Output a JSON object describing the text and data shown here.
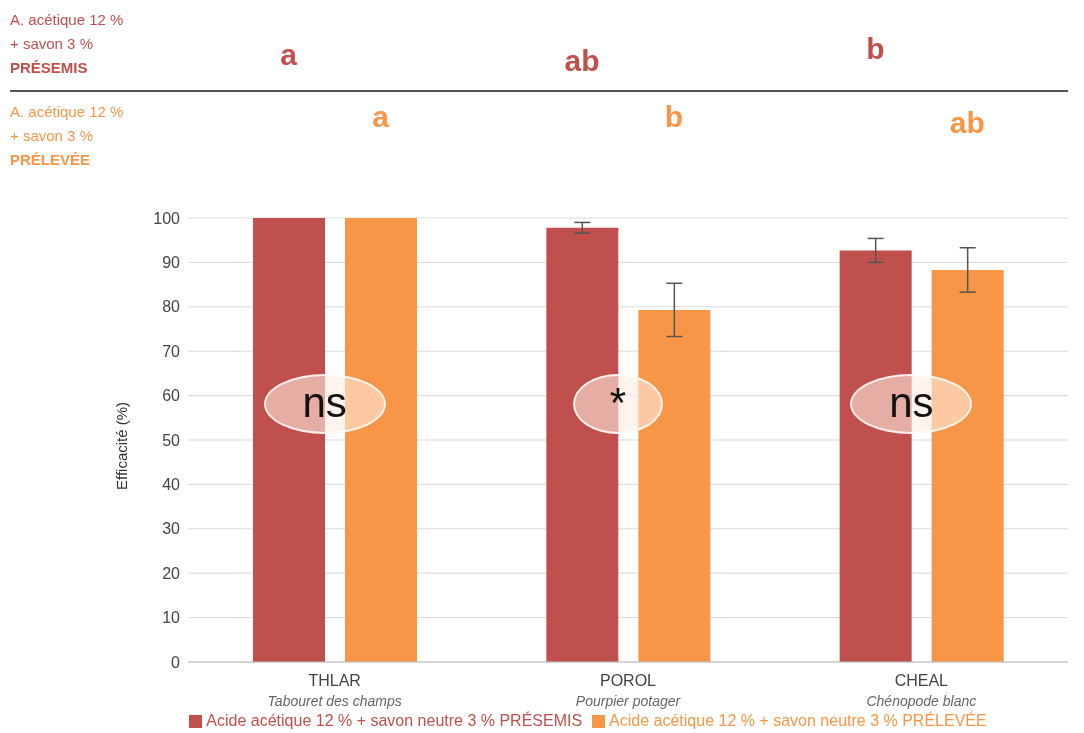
{
  "chart_data": {
    "type": "bar",
    "ylabel": "Efficacité (%)",
    "categories": [
      "THLAR\nTabouret des champs",
      "POROL\nPourpier potager",
      "CHEAL\nChénopode blanc"
    ],
    "series": [
      {
        "name": "Acide acétique 12 % + savon neutre 3 % PRÉSEMIS",
        "color": "#c0504d",
        "values": [
          100,
          97.8,
          92.7
        ],
        "errors": [
          0,
          1.2,
          2.7
        ]
      },
      {
        "name": "Acide acétique 12 % + savon neutre 3 % PRÉLEVÉE",
        "color": "#f79646",
        "values": [
          100,
          79.3,
          88.3
        ],
        "errors": [
          0,
          6,
          5
        ]
      }
    ],
    "ylim": [
      0,
      100
    ],
    "yticks": [
      0,
      10,
      20,
      30,
      40,
      50,
      60,
      70,
      80,
      90,
      100
    ],
    "grid": "y",
    "legend": "bottom",
    "annotations": [
      "A. acétique 12 %\n+ savon 3 %\nPRÉSEMIS",
      "A. acétique 12 %\n+ savon 3 %\nPRÉLEVÉE",
      "a",
      "ab",
      "b",
      "a",
      "b",
      "ab",
      "ns",
      "*",
      "ns"
    ]
  }
}
